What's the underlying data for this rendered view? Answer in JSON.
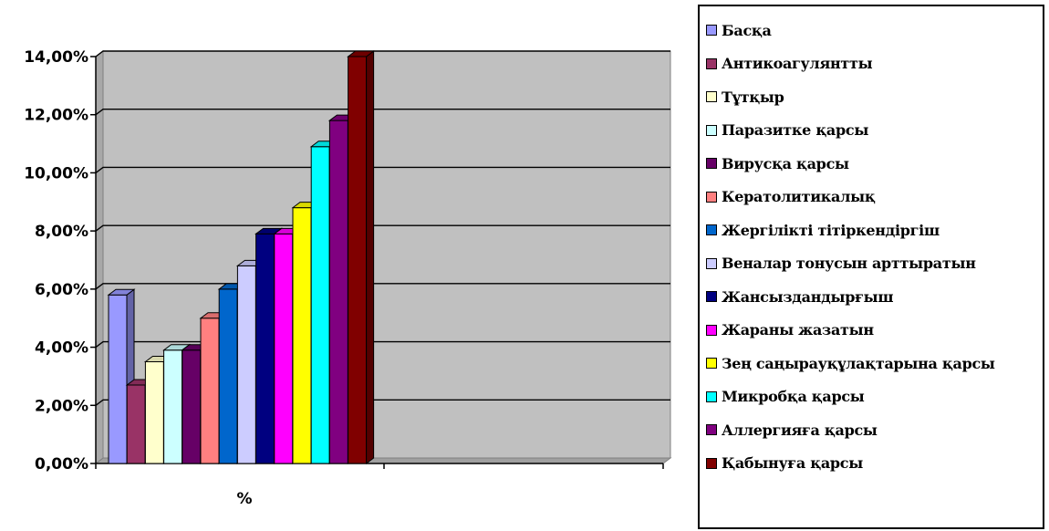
{
  "chart_data": {
    "type": "bar",
    "categories": [
      "%"
    ],
    "ylim": [
      0,
      0.14
    ],
    "yticks": [
      "0,00%",
      "2,00%",
      "4,00%",
      "6,00%",
      "8,00%",
      "10,00%",
      "12,00%",
      "14,00%"
    ],
    "grid": true,
    "legend": "right",
    "series": [
      {
        "name": "Басқа",
        "value": 0.058,
        "color": "#9999ff"
      },
      {
        "name": "Антикоагулянтты",
        "value": 0.027,
        "color": "#993366"
      },
      {
        "name": "Тұтқыр",
        "value": 0.035,
        "color": "#ffffcc"
      },
      {
        "name": "Паразитке қарсы",
        "value": 0.039,
        "color": "#ccffff"
      },
      {
        "name": "Вирусқа қарсы",
        "value": 0.039,
        "color": "#660066"
      },
      {
        "name": "Кератолитикалық",
        "value": 0.05,
        "color": "#ff8080"
      },
      {
        "name": "Жергілікті тітіркендіргіш",
        "value": 0.06,
        "color": "#0066cc"
      },
      {
        "name": "Веналар тонусын арттыратын",
        "value": 0.068,
        "color": "#ccccff"
      },
      {
        "name": "Жансыздандырғыш",
        "value": 0.079,
        "color": "#000080"
      },
      {
        "name": "Жараны жазатын",
        "value": 0.079,
        "color": "#ff00ff"
      },
      {
        "name": "Зең саңырауқұлақтарына қарсы",
        "value": 0.088,
        "color": "#ffff00"
      },
      {
        "name": "Микробқа қарсы",
        "value": 0.109,
        "color": "#00ffff"
      },
      {
        "name": "Аллергияға қарсы",
        "value": 0.118,
        "color": "#800080"
      },
      {
        "name": "Қабынуға қарсы",
        "value": 0.14,
        "color": "#800000"
      }
    ]
  }
}
